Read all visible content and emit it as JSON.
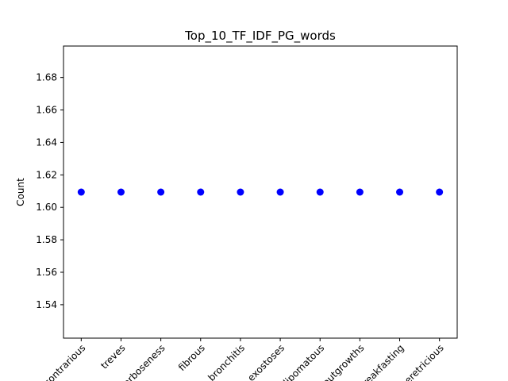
{
  "chart_data": {
    "type": "scatter",
    "title": "Top_10_TF_IDF_PG_words",
    "xlabel": "",
    "ylabel": "Count",
    "categories": [
      "contrarious",
      "treves",
      "morboseness",
      "fibrous",
      "bronchitis",
      "exostoses",
      "lipomatous",
      "outgrowths",
      "breakfasting",
      "meretricious"
    ],
    "values": [
      1.6094,
      1.6094,
      1.6094,
      1.6094,
      1.6094,
      1.6094,
      1.6094,
      1.6094,
      1.6094,
      1.6094
    ],
    "ylim": [
      1.5194,
      1.6994
    ],
    "yticks": [
      "1.54",
      "1.56",
      "1.58",
      "1.60",
      "1.62",
      "1.64",
      "1.66",
      "1.68"
    ],
    "xtick_rotation": 45,
    "grid": false,
    "legend": "none",
    "marker_color": "#0000ff"
  }
}
